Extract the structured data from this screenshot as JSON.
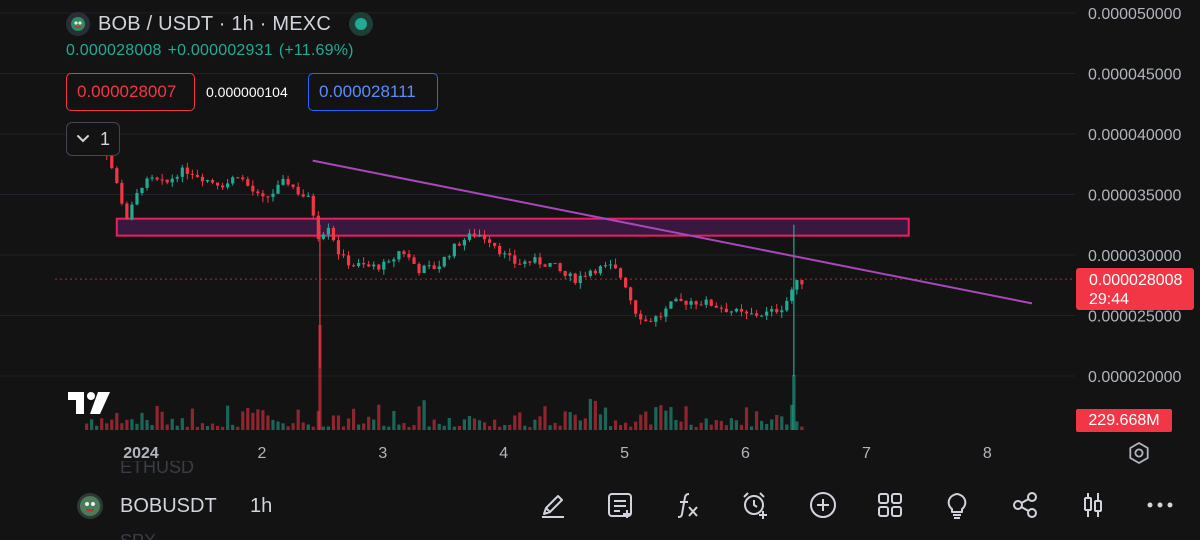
{
  "header": {
    "title": "BOB / USDT · 1h · MEXC",
    "last_price": "0.000028008",
    "change_abs": "+0.000002931",
    "change_pct": "(+11.69%)",
    "bid": "0.000028007",
    "spread": "0.000000104",
    "ask": "0.000028111",
    "indicators_collapsed_count": "1"
  },
  "price_axis": {
    "labels": [
      "0.000050000",
      "0.000045000",
      "0.000040000",
      "0.000035000",
      "0.000030000",
      "0.000025000",
      "0.000020000"
    ],
    "current_price": "0.000028008",
    "countdown": "29:44",
    "volume": "229.668M"
  },
  "time_axis": {
    "labels": [
      "2024",
      "2",
      "3",
      "4",
      "5",
      "6",
      "7",
      "8"
    ]
  },
  "bottom_bar": {
    "symbol": "BOBUSDT",
    "interval": "1h",
    "ghost_top": "ETHUSD",
    "ghost_bottom": "SPX"
  },
  "icons": [
    "pencil-icon",
    "notes-icon",
    "fx-icon",
    "alarm-clock-icon",
    "plus-circle-icon",
    "grid-icon",
    "lightbulb-icon",
    "share-icon",
    "candles-icon",
    "more-icon",
    "gear-icon"
  ],
  "colors": {
    "up": "#22ab94",
    "down": "#f23645",
    "trendline": "#ab47bc",
    "zone_border": "#e91e63",
    "background": "#131313"
  },
  "chart_data": {
    "type": "candlestick",
    "symbol": "BOB / USDT",
    "interval": "1h",
    "exchange": "MEXC",
    "x_ticks": [
      "2024",
      "2",
      "3",
      "4",
      "5",
      "6",
      "7",
      "8"
    ],
    "ylim": [
      1.62e-05,
      5.18e-05
    ],
    "y_ticks": [
      2e-05,
      2.5e-05,
      3e-05,
      3.5e-05,
      4e-05,
      4.5e-05,
      5e-05
    ],
    "grid": true,
    "close_path": [
      [
        0.55,
        3.9e-05
      ],
      [
        0.65,
        3.95e-05
      ],
      [
        0.72,
        3.85e-05
      ],
      [
        0.78,
        3.65e-05
      ],
      [
        0.84,
        3.45e-05
      ],
      [
        0.88,
        3.3e-05
      ],
      [
        0.93,
        3.4e-05
      ],
      [
        1.0,
        3.58e-05
      ],
      [
        1.1,
        3.62e-05
      ],
      [
        1.2,
        3.58e-05
      ],
      [
        1.3,
        3.68e-05
      ],
      [
        1.4,
        3.7e-05
      ],
      [
        1.55,
        3.62e-05
      ],
      [
        1.7,
        3.58e-05
      ],
      [
        1.8,
        3.67e-05
      ],
      [
        1.9,
        3.55e-05
      ],
      [
        2.0,
        3.45e-05
      ],
      [
        2.1,
        3.52e-05
      ],
      [
        2.2,
        3.62e-05
      ],
      [
        2.3,
        3.52e-05
      ],
      [
        2.4,
        3.45e-05
      ],
      [
        2.47,
        3.15e-05
      ],
      [
        2.55,
        3.25e-05
      ],
      [
        2.65,
        2.98e-05
      ],
      [
        2.75,
        2.92e-05
      ],
      [
        2.9,
        2.9e-05
      ],
      [
        3.05,
        2.92e-05
      ],
      [
        3.15,
        3.05e-05
      ],
      [
        3.3,
        2.88e-05
      ],
      [
        3.45,
        2.9e-05
      ],
      [
        3.55,
        3.02e-05
      ],
      [
        3.65,
        3.12e-05
      ],
      [
        3.78,
        3.18e-05
      ],
      [
        3.9,
        3.12e-05
      ],
      [
        4.0,
        3e-05
      ],
      [
        4.1,
        2.93e-05
      ],
      [
        4.25,
        2.95e-05
      ],
      [
        4.4,
        2.92e-05
      ],
      [
        4.5,
        2.83e-05
      ],
      [
        4.6,
        2.8e-05
      ],
      [
        4.72,
        2.88e-05
      ],
      [
        4.9,
        2.9e-05
      ],
      [
        5.0,
        2.78e-05
      ],
      [
        5.08,
        2.55e-05
      ],
      [
        5.18,
        2.45e-05
      ],
      [
        5.3,
        2.5e-05
      ],
      [
        5.4,
        2.6e-05
      ],
      [
        5.55,
        2.62e-05
      ],
      [
        5.7,
        2.6e-05
      ],
      [
        5.85,
        2.55e-05
      ],
      [
        6.0,
        2.5e-05
      ],
      [
        6.2,
        2.52e-05
      ],
      [
        6.32,
        2.58e-05
      ],
      [
        6.4,
        2.75e-05
      ],
      [
        6.5,
        2.8e-05
      ]
    ],
    "volume_peaks": [
      [
        2.48,
        2.07e-05
      ],
      [
        6.4,
        2e-05
      ]
    ],
    "resistance_zone": {
      "price_low": 3.16e-05,
      "price_high": 3.3e-05,
      "x_start": 0.8,
      "x_end": 7.35
    },
    "trendline": {
      "start": [
        2.42,
        3.78e-05
      ],
      "end": [
        8.37,
        2.6e-05
      ]
    },
    "current_price_line": 2.8008e-05
  }
}
